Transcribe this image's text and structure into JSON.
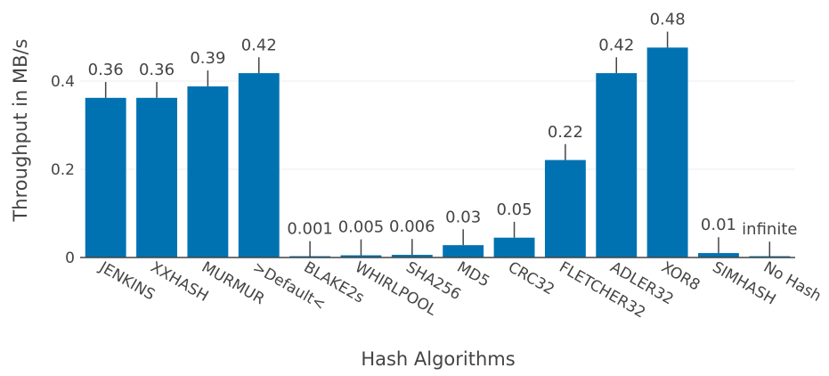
{
  "chart_data": {
    "type": "bar",
    "xlabel": "Hash Algorithms",
    "ylabel": "Throughput in MB/s",
    "ylim": [
      0,
      0.5
    ],
    "yticks": [
      0,
      0.2,
      0.4
    ],
    "grid": true,
    "legend": "none",
    "bar_color": "#0072b2",
    "categories": [
      "JENKINS",
      "XXHASH",
      "MURMUR",
      ">Default<",
      "BLAKE2s",
      "WHIRLPOOL",
      "SHA256",
      "MD5",
      "CRC32",
      "FLETCHER32",
      "ADLER32",
      "XOR8",
      "SIMHASH",
      "No Hash"
    ],
    "values": [
      0.36,
      0.36,
      0.39,
      0.42,
      0.001,
      0.005,
      0.006,
      0.03,
      0.05,
      0.22,
      0.42,
      0.48,
      0.01,
      0
    ],
    "bar_values": [
      0.362,
      0.362,
      0.388,
      0.418,
      0.001,
      0.005,
      0.006,
      0.028,
      0.045,
      0.221,
      0.418,
      0.476,
      0.01,
      0
    ],
    "data_labels": [
      "0.36",
      "0.36",
      "0.39",
      "0.42",
      "0.001",
      "0.005",
      "0.006",
      "0.03",
      "0.05",
      "0.22",
      "0.42",
      "0.48",
      "0.01",
      "infinite"
    ],
    "error_bars": [
      0.036,
      0.036,
      0.036,
      0.036,
      0.036,
      0.036,
      0.036,
      0.036,
      0.036,
      0.036,
      0.036,
      0.036,
      0.036,
      0.036
    ]
  }
}
